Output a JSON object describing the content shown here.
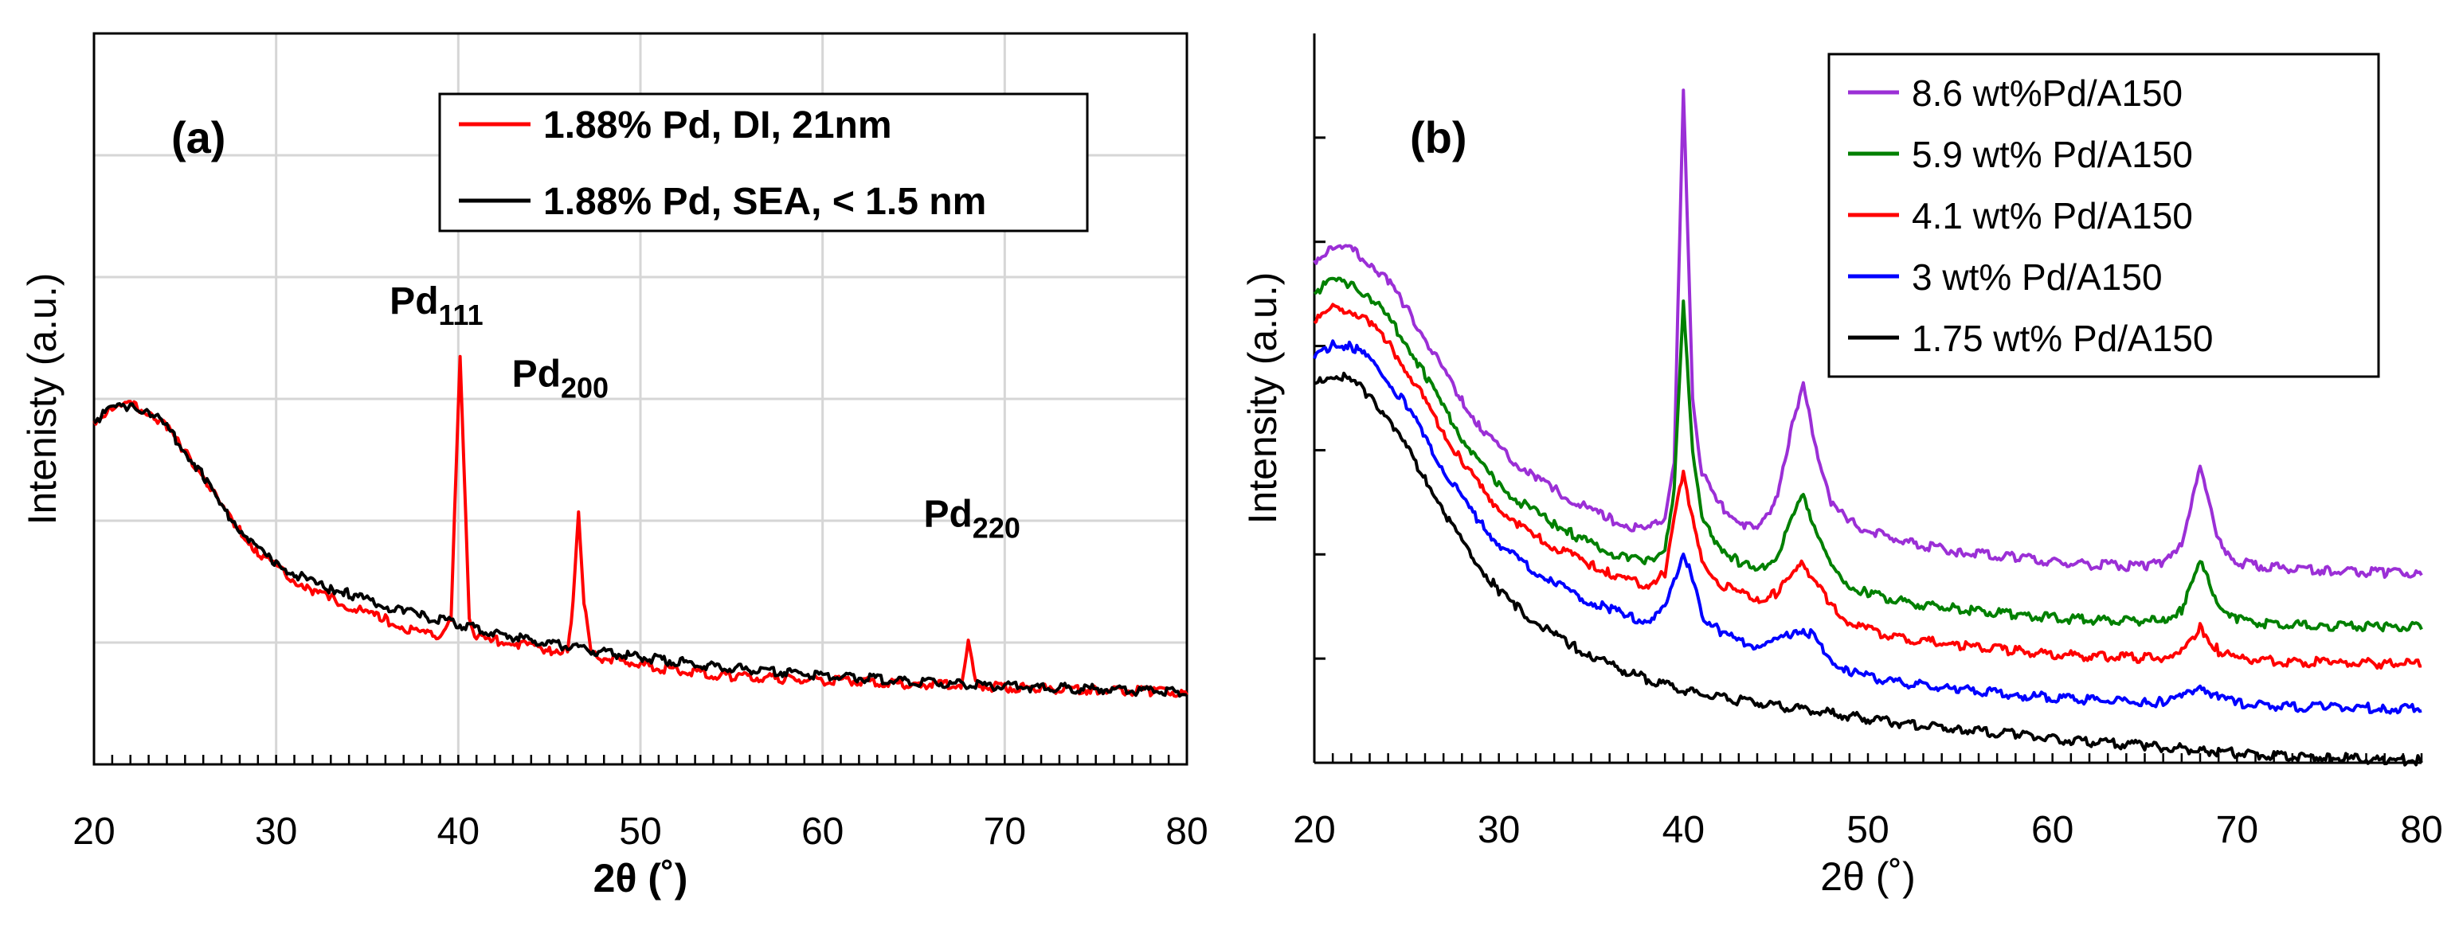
{
  "chart_data": [
    {
      "type": "line",
      "panel_label": "(a)",
      "xlabel_main": "2θ",
      "xlabel_unit": "(˚)",
      "ylabel": "Intenisty (a.u.)",
      "xlim": [
        20,
        80
      ],
      "ylim": [
        0,
        6
      ],
      "xticks": [
        20,
        30,
        40,
        50,
        60,
        70,
        80
      ],
      "grid": true,
      "legend_position": "top-right",
      "series": [
        {
          "name": "1.88% Pd, DI, 21nm",
          "color": "#ff0000",
          "x": [
            20,
            21,
            22,
            23,
            24,
            25,
            26,
            27,
            28,
            29,
            30,
            31,
            32,
            33,
            34,
            35,
            36,
            37,
            38,
            39,
            39.6,
            40.1,
            40.6,
            41,
            42,
            43,
            44,
            45,
            46,
            46.3,
            46.6,
            46.9,
            47.3,
            48,
            50,
            52,
            55,
            58,
            60,
            62,
            65,
            67.6,
            68,
            68.4,
            69,
            72,
            75,
            78,
            80
          ],
          "y": [
            2.8,
            2.9,
            2.93,
            2.88,
            2.75,
            2.55,
            2.35,
            2.1,
            1.9,
            1.72,
            1.6,
            1.5,
            1.4,
            1.35,
            1.28,
            1.22,
            1.17,
            1.1,
            1.05,
            1.05,
            1.2,
            3.3,
            1.2,
            1.02,
            1.0,
            0.98,
            0.95,
            0.92,
            0.92,
            1.3,
            2.07,
            1.3,
            0.88,
            0.85,
            0.8,
            0.75,
            0.7,
            0.68,
            0.67,
            0.66,
            0.64,
            0.64,
            0.98,
            0.64,
            0.62,
            0.6,
            0.59,
            0.58,
            0.57
          ]
        },
        {
          "name": "1.88% Pd, SEA, < 1.5 nm",
          "color": "#000000",
          "x": [
            20,
            21,
            22,
            23,
            24,
            25,
            26,
            27,
            28,
            29,
            30,
            31,
            32,
            33,
            34,
            35,
            36,
            37,
            38,
            40,
            42,
            44,
            46,
            48,
            50,
            55,
            60,
            65,
            70,
            75,
            80
          ],
          "y": [
            2.8,
            2.9,
            2.93,
            2.88,
            2.75,
            2.55,
            2.35,
            2.1,
            1.92,
            1.75,
            1.63,
            1.55,
            1.47,
            1.42,
            1.38,
            1.33,
            1.28,
            1.24,
            1.2,
            1.13,
            1.06,
            1.0,
            0.95,
            0.9,
            0.86,
            0.77,
            0.71,
            0.66,
            0.62,
            0.6,
            0.57
          ]
        }
      ],
      "annotations": [
        {
          "base": "Pd",
          "sub": "111",
          "x": 38.8,
          "y": 3.7
        },
        {
          "base": "Pd",
          "sub": "200",
          "x": 45.6,
          "y": 3.1
        },
        {
          "base": "Pd",
          "sub": "220",
          "x": 68.2,
          "y": 1.95
        }
      ]
    },
    {
      "type": "line",
      "panel_label": "(b)",
      "xlabel_main": "2θ",
      "xlabel_unit": "(˚)",
      "ylabel": "Intensity (a.u.)",
      "xlim": [
        20,
        80
      ],
      "ylim": [
        0,
        7
      ],
      "xticks": [
        20,
        30,
        40,
        50,
        60,
        70,
        80
      ],
      "grid": false,
      "legend_position": "top-right",
      "series": [
        {
          "name": "8.6 wt%Pd/A150",
          "color": "#9b2fd6",
          "x": [
            20,
            21,
            22,
            23,
            24,
            25,
            26,
            27,
            28,
            29,
            30,
            31,
            32,
            33,
            34,
            35,
            36,
            37,
            38,
            39,
            39.5,
            40,
            40.5,
            41,
            42,
            43,
            44,
            45,
            46,
            46.5,
            47,
            48,
            49,
            50,
            52,
            55,
            58,
            60,
            62,
            65,
            66,
            67,
            68,
            69,
            70,
            72,
            75,
            78,
            80
          ],
          "y": [
            4.8,
            4.92,
            4.9,
            4.78,
            4.6,
            4.35,
            4.05,
            3.75,
            3.45,
            3.2,
            3.0,
            2.85,
            2.72,
            2.6,
            2.5,
            2.4,
            2.32,
            2.25,
            2.2,
            2.35,
            2.9,
            6.4,
            3.5,
            2.75,
            2.45,
            2.3,
            2.2,
            2.5,
            3.3,
            3.6,
            3.15,
            2.45,
            2.3,
            2.2,
            2.1,
            2.0,
            1.95,
            1.9,
            1.88,
            1.86,
            1.9,
            2.1,
            2.8,
            2.1,
            1.9,
            1.85,
            1.82,
            1.8,
            1.8
          ]
        },
        {
          "name": "5.9 wt% Pd/A150",
          "color": "#008000",
          "x": [
            20,
            21,
            22,
            23,
            24,
            25,
            26,
            27,
            28,
            29,
            30,
            31,
            32,
            33,
            34,
            35,
            36,
            37,
            38,
            39,
            39.5,
            40,
            40.5,
            41,
            42,
            43,
            44,
            45,
            46,
            46.5,
            47,
            48,
            49,
            50,
            52,
            55,
            58,
            60,
            62,
            65,
            66,
            67,
            68,
            69,
            70,
            72,
            75,
            78,
            80
          ],
          "y": [
            4.5,
            4.6,
            4.58,
            4.45,
            4.25,
            4.0,
            3.7,
            3.4,
            3.1,
            2.85,
            2.65,
            2.5,
            2.38,
            2.27,
            2.17,
            2.08,
            2.0,
            1.94,
            1.9,
            2.05,
            2.6,
            4.4,
            3.0,
            2.3,
            2.05,
            1.9,
            1.82,
            1.95,
            2.35,
            2.55,
            2.3,
            1.85,
            1.68,
            1.6,
            1.52,
            1.45,
            1.4,
            1.37,
            1.35,
            1.33,
            1.35,
            1.45,
            1.9,
            1.5,
            1.35,
            1.3,
            1.29,
            1.28,
            1.28
          ]
        },
        {
          "name": "4.1 wt% Pd/A150",
          "color": "#ff0000",
          "x": [
            20,
            21,
            22,
            23,
            24,
            25,
            26,
            27,
            28,
            29,
            30,
            31,
            32,
            33,
            34,
            35,
            36,
            37,
            38,
            39,
            39.5,
            40,
            40.5,
            41,
            42,
            43,
            44,
            45,
            46,
            46.5,
            47,
            48,
            49,
            50,
            52,
            55,
            58,
            60,
            62,
            65,
            66,
            67,
            68,
            69,
            70,
            72,
            75,
            78,
            80
          ],
          "y": [
            4.2,
            4.35,
            4.32,
            4.2,
            4.0,
            3.75,
            3.45,
            3.15,
            2.87,
            2.62,
            2.42,
            2.27,
            2.15,
            2.05,
            1.96,
            1.88,
            1.8,
            1.73,
            1.68,
            1.8,
            2.3,
            2.8,
            2.3,
            1.9,
            1.7,
            1.6,
            1.55,
            1.6,
            1.8,
            1.9,
            1.75,
            1.48,
            1.32,
            1.25,
            1.17,
            1.1,
            1.05,
            1.02,
            1.0,
            0.98,
            0.99,
            1.03,
            1.28,
            1.05,
            0.98,
            0.95,
            0.94,
            0.93,
            0.93
          ]
        },
        {
          "name": "3 wt% Pd/A150",
          "color": "#0000ff",
          "x": [
            20,
            21,
            22,
            23,
            24,
            25,
            26,
            27,
            28,
            29,
            30,
            31,
            32,
            33,
            34,
            35,
            36,
            37,
            38,
            39,
            39.5,
            40,
            40.5,
            41,
            42,
            43,
            44,
            45,
            46,
            46.5,
            47,
            48,
            49,
            50,
            52,
            55,
            58,
            60,
            62,
            65,
            66,
            67,
            68,
            69,
            70,
            72,
            75,
            78,
            80
          ],
          "y": [
            3.85,
            4.0,
            3.98,
            3.85,
            3.65,
            3.4,
            3.1,
            2.8,
            2.52,
            2.28,
            2.08,
            1.93,
            1.8,
            1.7,
            1.6,
            1.52,
            1.45,
            1.38,
            1.34,
            1.45,
            1.7,
            2.0,
            1.72,
            1.4,
            1.24,
            1.15,
            1.1,
            1.15,
            1.22,
            1.26,
            1.2,
            0.98,
            0.85,
            0.8,
            0.74,
            0.68,
            0.63,
            0.6,
            0.58,
            0.56,
            0.56,
            0.6,
            0.72,
            0.6,
            0.55,
            0.52,
            0.51,
            0.5,
            0.5
          ]
        },
        {
          "name": "1.75 wt% Pd/A150",
          "color": "#000000",
          "x": [
            20,
            21,
            22,
            23,
            24,
            25,
            26,
            27,
            28,
            29,
            30,
            31,
            32,
            33,
            34,
            35,
            36,
            38,
            40,
            42,
            44,
            46,
            48,
            50,
            52,
            55,
            58,
            60,
            62,
            65,
            68,
            70,
            72,
            75,
            78,
            80
          ],
          "y": [
            3.6,
            3.7,
            3.65,
            3.5,
            3.3,
            3.0,
            2.7,
            2.4,
            2.1,
            1.85,
            1.63,
            1.47,
            1.33,
            1.2,
            1.1,
            1.0,
            0.92,
            0.78,
            0.67,
            0.6,
            0.55,
            0.5,
            0.45,
            0.4,
            0.35,
            0.3,
            0.25,
            0.21,
            0.18,
            0.14,
            0.1,
            0.07,
            0.05,
            0.03,
            0.0,
            0.0
          ]
        }
      ]
    }
  ]
}
